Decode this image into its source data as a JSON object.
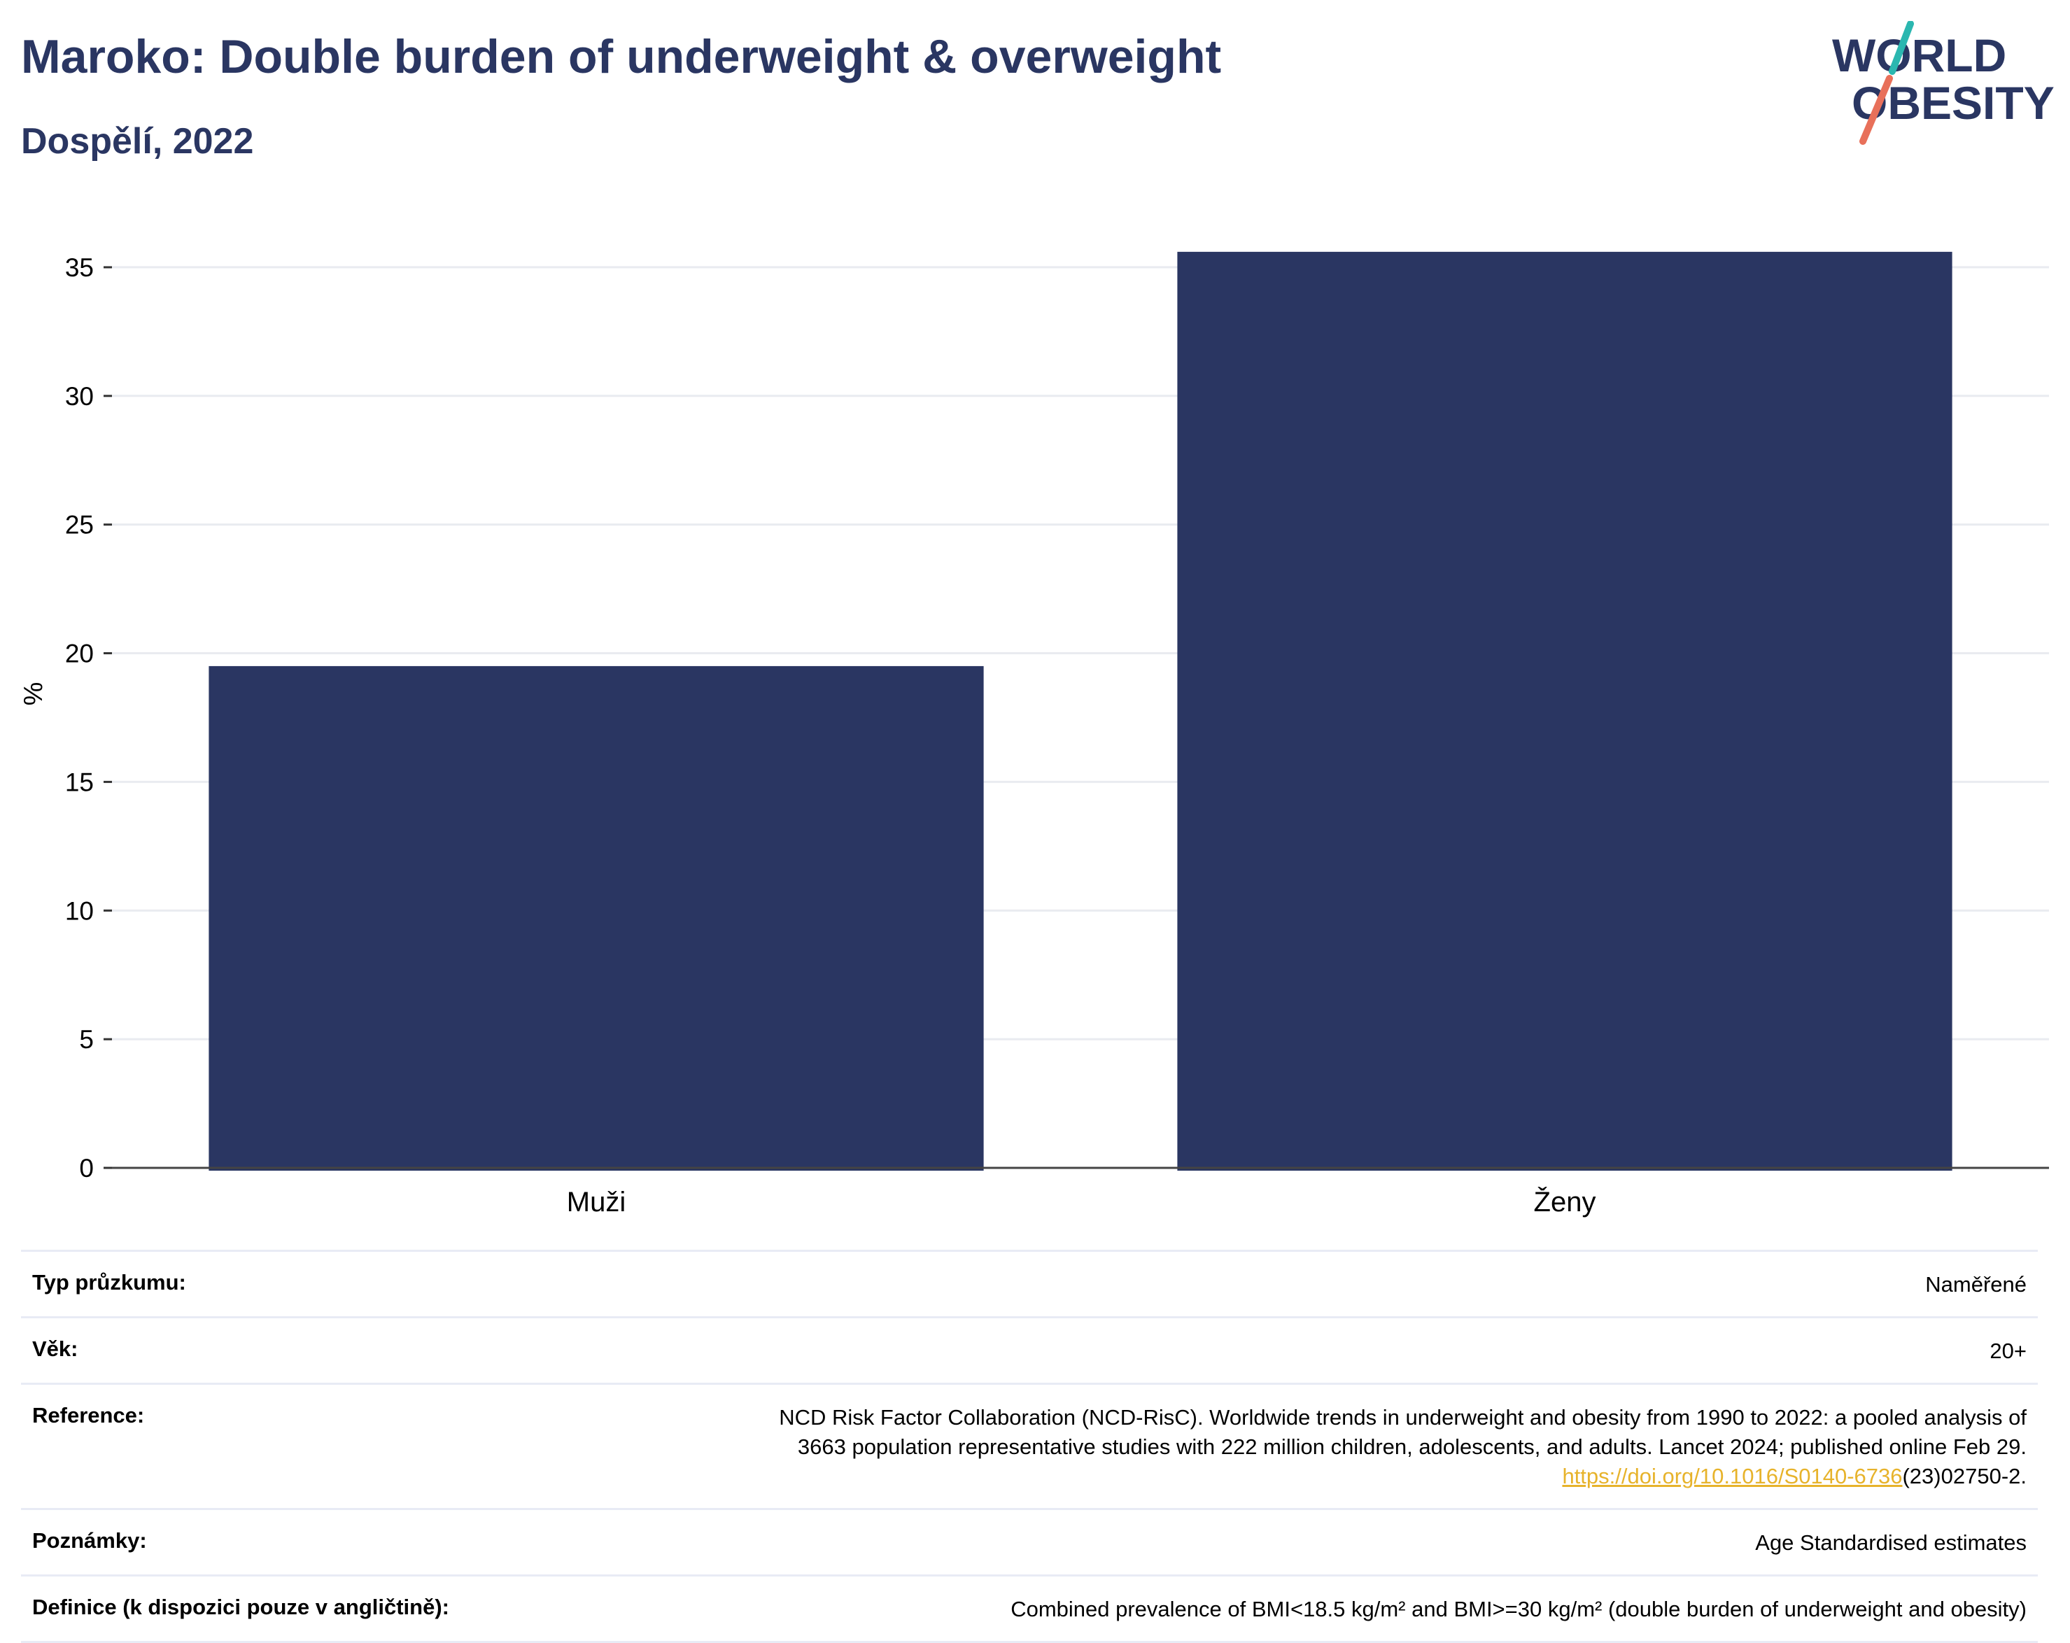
{
  "header": {
    "title": "Maroko: Double burden of underweight & overweight",
    "subtitle": "Dospělí, 2022"
  },
  "logo": {
    "line1": "WORLD",
    "line2": "OBESITY",
    "colors": {
      "text": "#2a3662",
      "slash_top": "#2bb7b0",
      "slash_bottom": "#e8705a"
    }
  },
  "chart_data": {
    "type": "bar",
    "categories": [
      "Muži",
      "Ženy"
    ],
    "values": [
      19.5,
      35.6
    ],
    "title": "Maroko: Double burden of underweight & overweight",
    "subtitle": "Dospělí, 2022",
    "xlabel": "",
    "ylabel": "%",
    "ylim": [
      0,
      37.5
    ],
    "yticks": [
      0,
      5,
      10,
      15,
      20,
      25,
      30,
      35
    ],
    "grid": true,
    "legend": "none",
    "bar_color": "#2a3662"
  },
  "info": {
    "survey_label": "Typ průzkumu:",
    "survey_value": "Naměřené",
    "age_label": "Věk:",
    "age_value": "20+",
    "reference_label": "Reference:",
    "reference_line1": "NCD Risk Factor Collaboration (NCD-RisC). Worldwide trends in underweight and obesity from 1990 to 2022: a pooled analysis of",
    "reference_line2": "3663 population representative studies with 222 million children, adolescents, and adults. Lancet 2024; published online Feb 29.",
    "reference_link": "https://doi.org/10.1016/S0140-6736",
    "reference_suffix": "(23)02750-2.",
    "notes_label": "Poznámky:",
    "notes_value": "Age Standardised estimates",
    "definition_label": "Definice (k dispozici pouze v angličtině):",
    "definition_value": "Combined prevalence of BMI<18.5 kg/m² and BMI>=30 kg/m² (double burden of underweight and obesity)"
  }
}
